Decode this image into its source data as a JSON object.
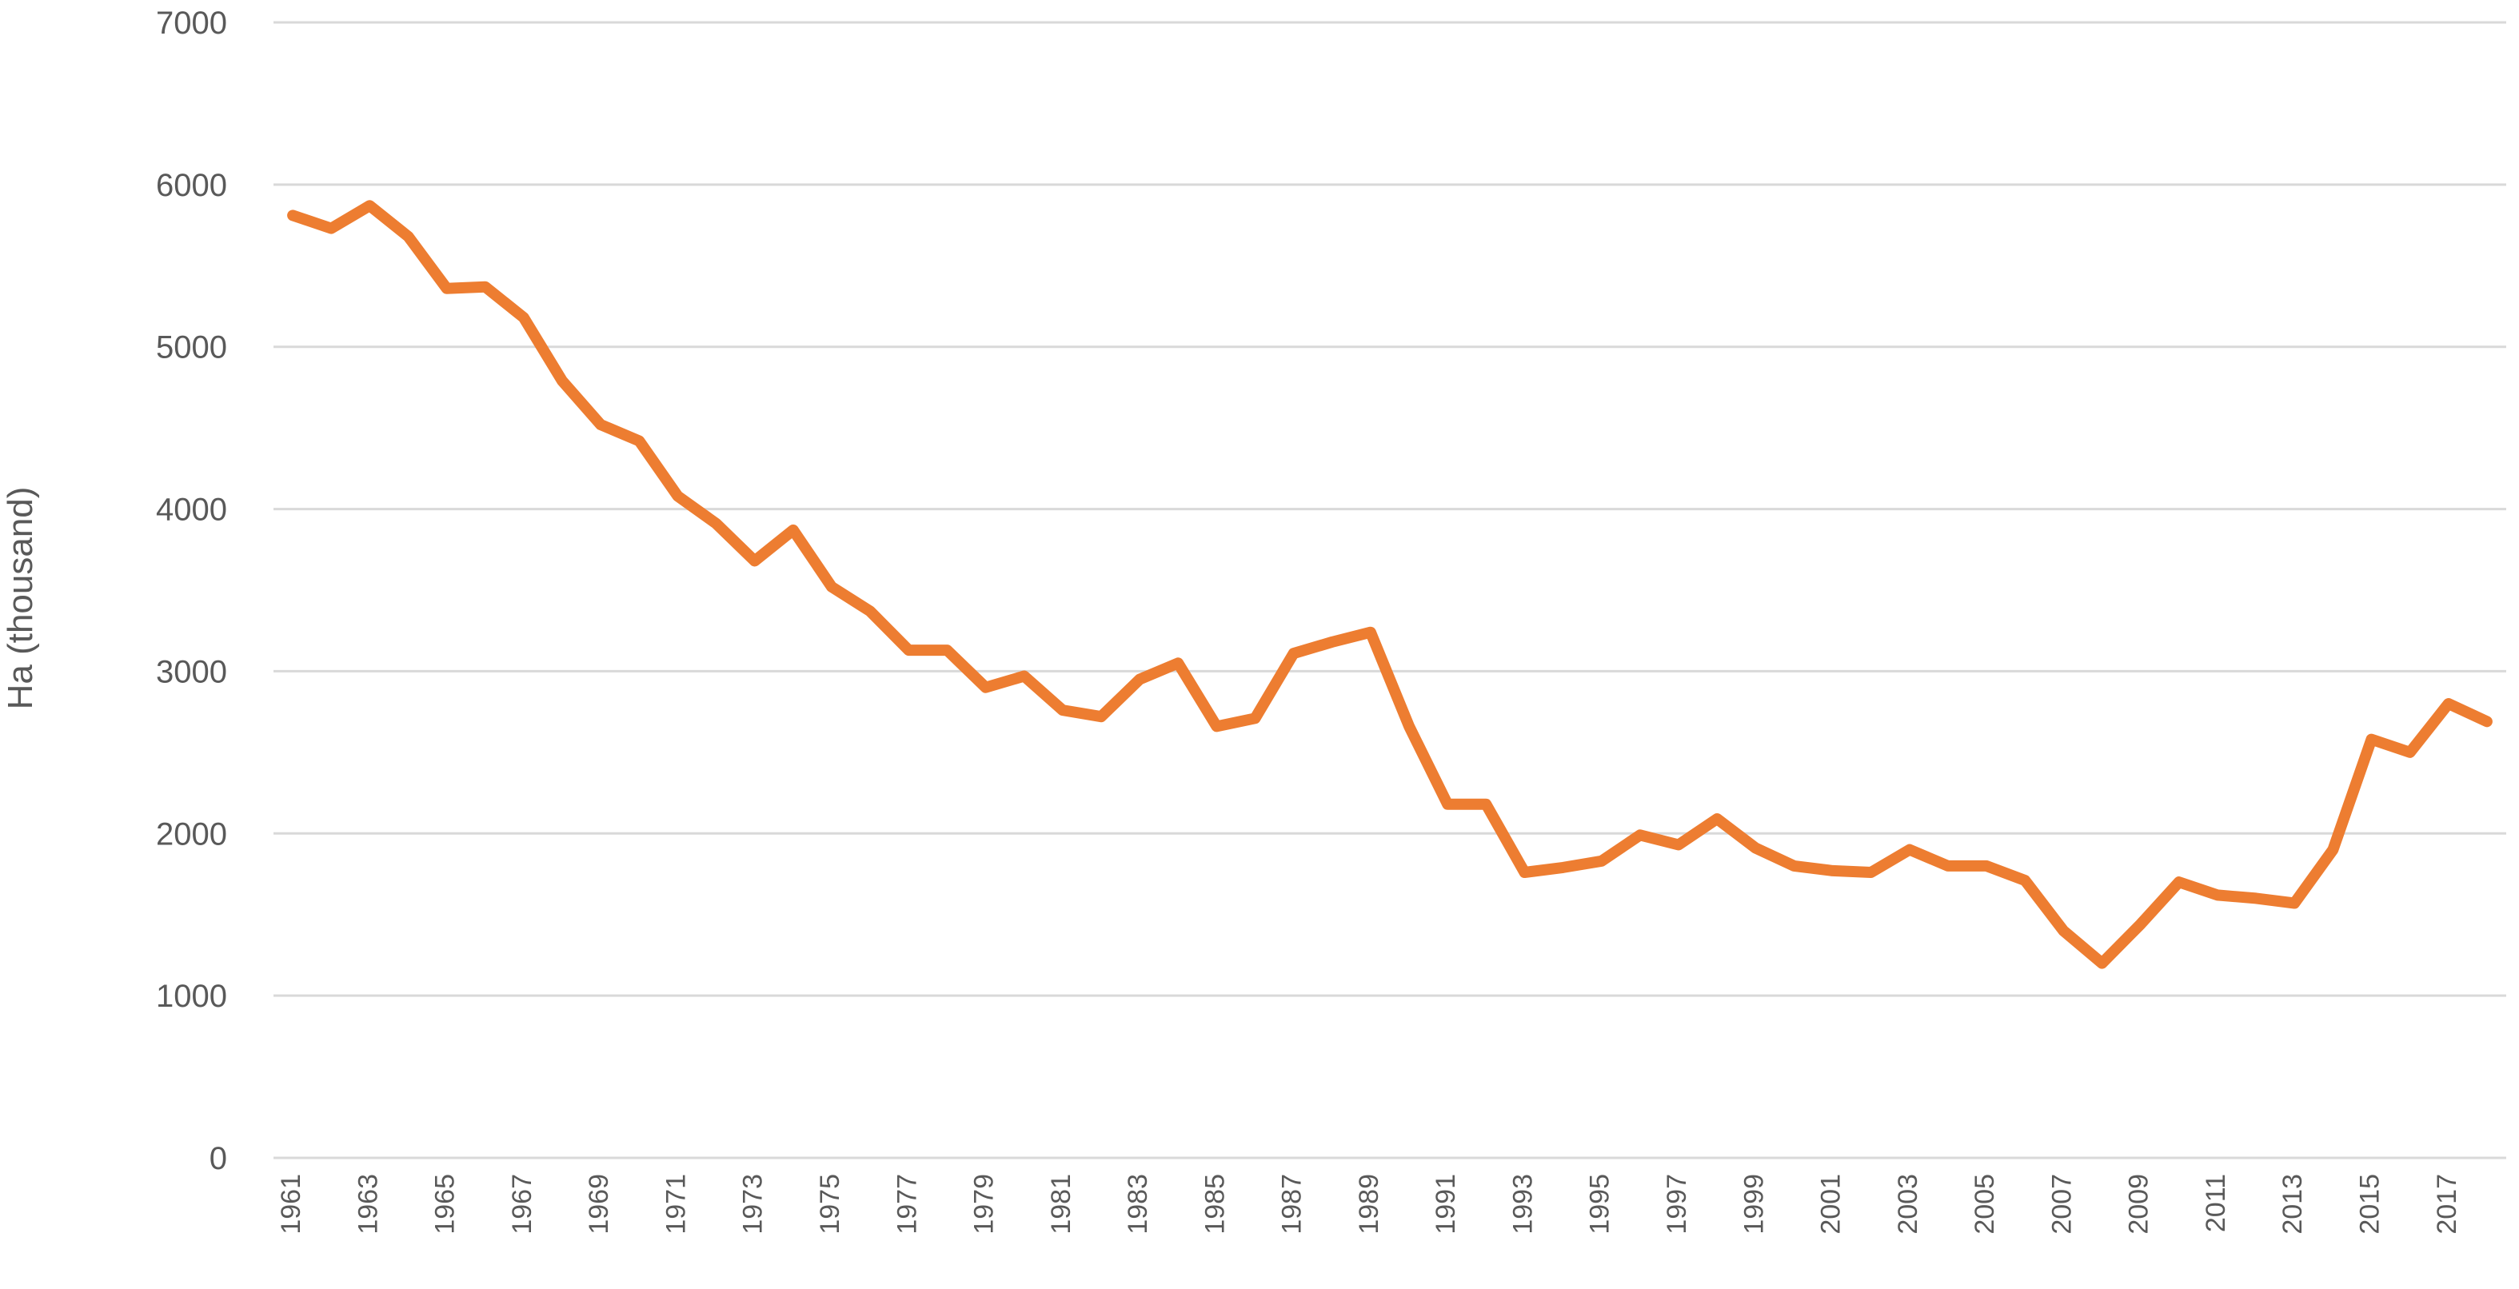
{
  "chart_data": {
    "type": "line",
    "title": "",
    "xlabel": "",
    "ylabel": "Ha (thousand)",
    "ylim": [
      0,
      7000
    ],
    "yticks": [
      0,
      1000,
      2000,
      3000,
      4000,
      5000,
      6000,
      7000
    ],
    "grid": "horizontal",
    "legend": "none",
    "x": [
      1961,
      1962,
      1963,
      1964,
      1965,
      1966,
      1967,
      1968,
      1969,
      1970,
      1971,
      1972,
      1973,
      1974,
      1975,
      1976,
      1977,
      1978,
      1979,
      1980,
      1981,
      1982,
      1983,
      1984,
      1985,
      1986,
      1987,
      1988,
      1989,
      1990,
      1991,
      1992,
      1993,
      1994,
      1995,
      1996,
      1997,
      1998,
      1999,
      2000,
      2001,
      2002,
      2003,
      2004,
      2005,
      2006,
      2007,
      2008,
      2009,
      2010,
      2011,
      2012,
      2013,
      2014,
      2015,
      2016,
      2017,
      2018
    ],
    "xtick_labels": [
      "1961",
      "1963",
      "1965",
      "1967",
      "1969",
      "1971",
      "1973",
      "1975",
      "1977",
      "1979",
      "1981",
      "1983",
      "1985",
      "1987",
      "1989",
      "1991",
      "1993",
      "1995",
      "1997",
      "1999",
      "2001",
      "2003",
      "2005",
      "2007",
      "2009",
      "2011",
      "2013",
      "2015",
      "2017"
    ],
    "series": [
      {
        "color": "#ED7D31",
        "values": [
          5810,
          5730,
          5870,
          5680,
          5360,
          5370,
          5180,
          4790,
          4520,
          4420,
          4080,
          3910,
          3680,
          3870,
          3520,
          3370,
          3130,
          3130,
          2900,
          2970,
          2760,
          2720,
          2950,
          3050,
          2660,
          2710,
          3110,
          3180,
          3240,
          2660,
          2180,
          2180,
          1760,
          1790,
          1830,
          1990,
          1930,
          2090,
          1910,
          1800,
          1770,
          1760,
          1900,
          1800,
          1800,
          1710,
          1400,
          1200,
          1440,
          1700,
          1620,
          1600,
          1570,
          1900,
          2580,
          2500,
          2800,
          2690
        ]
      }
    ]
  }
}
